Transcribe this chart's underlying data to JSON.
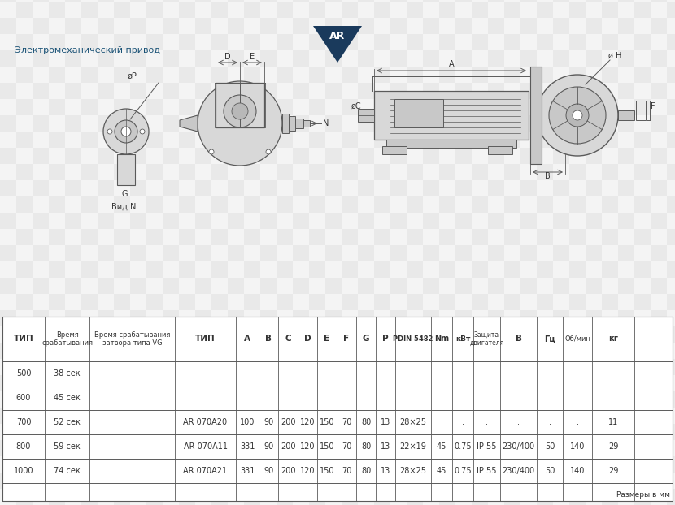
{
  "bg_checker_light": "#e8e8e8",
  "bg_checker_dark": "#d0d0d0",
  "checker_size": 20,
  "line_color": "#5a5a5a",
  "fill_light": "#d8d8d8",
  "fill_mid": "#c8c8c8",
  "fill_dark": "#b8b8b8",
  "text_color": "#333333",
  "blue_color": "#1a5276",
  "triangle_color": "#1a3a5c",
  "white": "#ffffff",
  "subtitle": "Электромеханический привод",
  "note": "Размеры в мм",
  "AR": "AR",
  "vid_n": "Вид N",
  "label_phi_p": "øP",
  "label_g": "G",
  "label_d": "D",
  "label_e": "E",
  "label_n": "N",
  "label_a": "A",
  "label_b": "B",
  "label_c": "øC",
  "label_h": "ø H",
  "label_f": "F"
}
